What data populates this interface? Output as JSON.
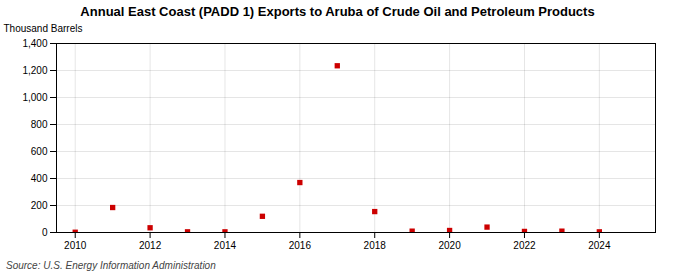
{
  "chart_data": {
    "type": "scatter",
    "title": "Annual East Coast (PADD 1) Exports to Aruba of Crude Oil and Petroleum Products",
    "ylabel": "Thousand Barrels",
    "annotations": [
      "Source: U.S. Energy Information Administration"
    ],
    "x": [
      2010,
      2011,
      2012,
      2013,
      2014,
      2015,
      2016,
      2017,
      2018,
      2019,
      2020,
      2021,
      2022,
      2023,
      2024
    ],
    "values": [
      2,
      185,
      35,
      5,
      5,
      120,
      370,
      1235,
      155,
      10,
      15,
      40,
      8,
      10,
      5
    ],
    "color": "#cc0000",
    "marker": "square",
    "xlim": [
      2009.5,
      2025.5
    ],
    "xticks": [
      2010,
      2012,
      2014,
      2016,
      2018,
      2020,
      2022,
      2024
    ],
    "ylim": [
      0,
      1400
    ],
    "yticks": [
      0,
      200,
      400,
      600,
      800,
      {
        "value": 1000,
        "label": "1,000"
      },
      {
        "value": 1200,
        "label": "1,200"
      },
      {
        "value": 1400,
        "label": "1,400"
      }
    ],
    "grid": true
  }
}
